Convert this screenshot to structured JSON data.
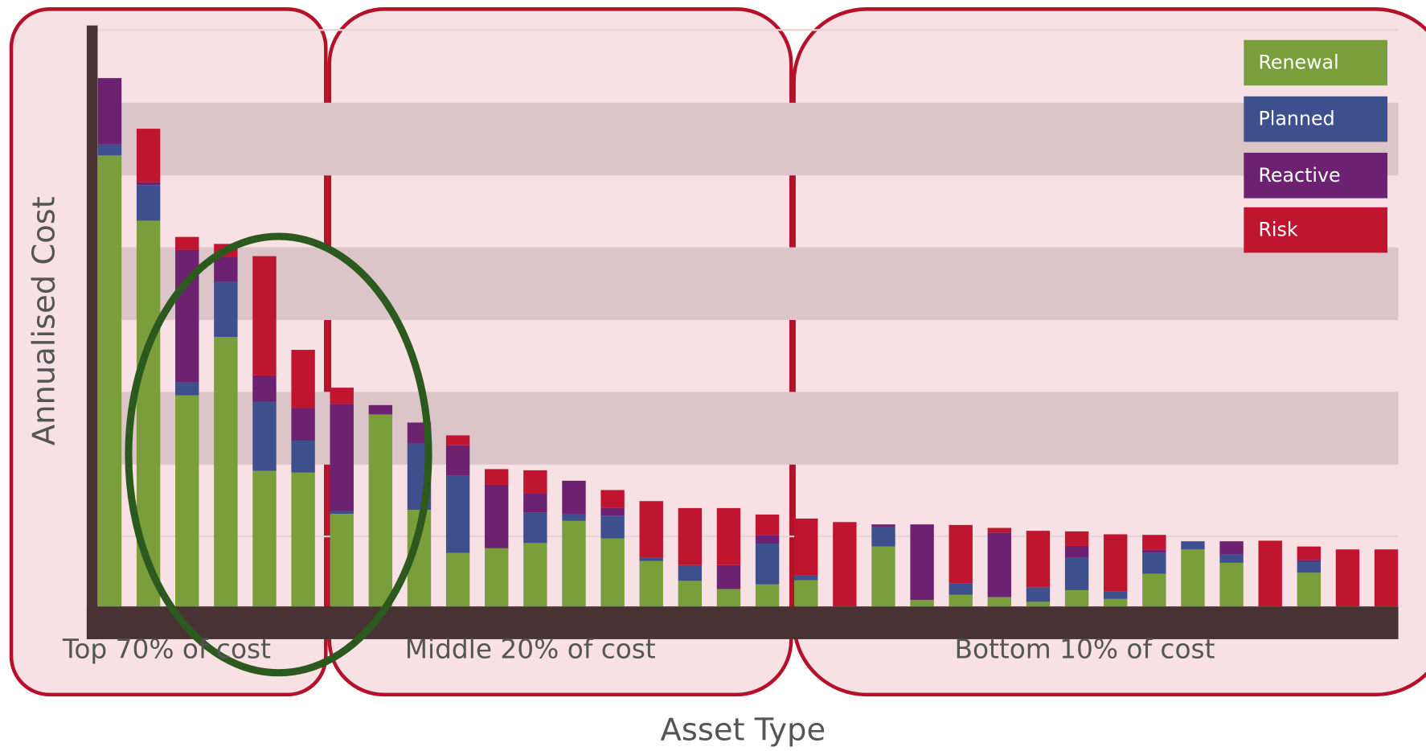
{
  "chart_data": {
    "type": "stacked_bar",
    "ylabel": "Annualised Cost",
    "xlabel": "Asset  Type",
    "annotations": [
      "Top 70% of cost",
      "Middle 20% of cost",
      "Bottom 10% of cost"
    ],
    "categories": [
      null,
      null,
      null,
      null,
      null,
      null,
      null,
      null,
      null,
      null,
      null,
      null,
      null,
      null,
      null,
      null,
      null,
      null,
      null,
      null,
      null,
      null,
      null,
      null,
      null,
      null,
      null,
      null,
      null,
      null,
      null,
      null,
      null,
      null
    ],
    "ylim": [
      0,
      100
    ],
    "series": [
      {
        "name": "Renewal",
        "color": "#7a9e3b",
        "values": [
          77.5,
          66.3,
          36.3,
          46.3,
          23.3,
          23,
          15.9,
          33,
          16.6,
          9.2,
          10,
          10.9,
          14.7,
          11.7,
          7.8,
          4.4,
          3,
          3.8,
          4.5,
          0,
          10.3,
          1.1,
          2,
          1.6,
          0.8,
          2.8,
          1.3,
          5.6,
          9.8,
          7.5,
          0,
          5.8,
          0,
          0
        ]
      },
      {
        "name": "Planned",
        "color": "#3e4f8e",
        "values": [
          1.9,
          6.1,
          2.2,
          9.5,
          11.9,
          5.5,
          0.5,
          0,
          11.4,
          13.3,
          0,
          5.2,
          1.1,
          3.9,
          0.6,
          2.7,
          0,
          7,
          0.8,
          0,
          3.3,
          0,
          2,
          0,
          2.5,
          5.6,
          1.3,
          3.6,
          1.4,
          1.4,
          0,
          1.9,
          0,
          0
        ]
      },
      {
        "name": "Reactive",
        "color": "#6c2270",
        "values": [
          11.4,
          0.5,
          22.8,
          4.2,
          4.5,
          5.6,
          18.4,
          1.6,
          3.6,
          5.2,
          10.9,
          3.4,
          5.8,
          1.4,
          0,
          0,
          4.1,
          1.4,
          0,
          0,
          0.5,
          13,
          0,
          11.1,
          0,
          2,
          0,
          0.6,
          0,
          2.3,
          0,
          0.3,
          0,
          0
        ]
      },
      {
        "name": "Risk",
        "color": "#c0152f",
        "values": [
          0,
          9.2,
          2.2,
          2.3,
          20.5,
          10,
          2.8,
          0,
          0,
          1.7,
          2.7,
          3.9,
          0,
          3,
          9.7,
          9.8,
          9.8,
          3.6,
          9.8,
          14.5,
          0,
          0,
          10,
          0.8,
          9.7,
          2.5,
          9.8,
          2.5,
          0,
          0,
          11.3,
          2.3,
          9.8,
          9.8
        ]
      }
    ]
  }
}
